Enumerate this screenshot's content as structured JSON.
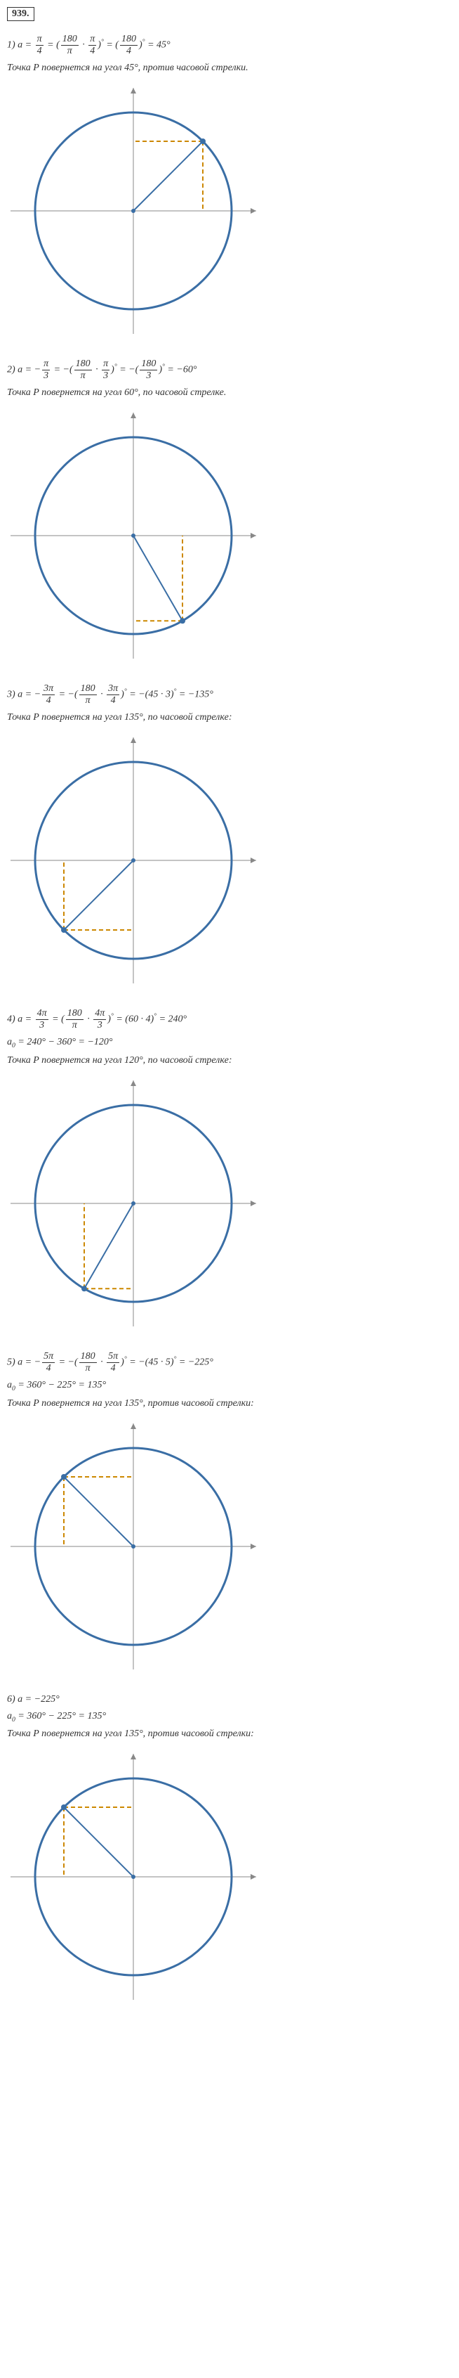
{
  "problem_number": "939.",
  "items": [
    {
      "label": "1)",
      "equation_html": "<i>a</i> = <span class='frac'><span class='num'>π</span><span class='den'>4</span></span> = (<span class='frac'><span class='num'>180</span><span class='den'>π</span></span> · <span class='frac'><span class='num'>π</span><span class='den'>4</span></span>)<span class='sup'>°</span> = (<span class='frac'><span class='num'>180</span><span class='den'>4</span></span>)<span class='sup'>°</span> = 45°",
      "description": "Точка P повернется на угол 45°, против часовой стрелки.",
      "angle": 45,
      "direction": "ccw"
    },
    {
      "label": "2)",
      "equation_html": "<i>a</i> = −<span class='frac'><span class='num'>π</span><span class='den'>3</span></span> = −(<span class='frac'><span class='num'>180</span><span class='den'>π</span></span> · <span class='frac'><span class='num'>π</span><span class='den'>3</span></span>)<span class='sup'>°</span> = −(<span class='frac'><span class='num'>180</span><span class='den'>3</span></span>)<span class='sup'>°</span> = −60°",
      "description": "Точка  P повернется на угол 60°, по часовой стрелке.",
      "angle": -60,
      "direction": "cw"
    },
    {
      "label": "3)",
      "equation_html": "<i>a</i> = −<span class='frac'><span class='num'>3π</span><span class='den'>4</span></span> = −(<span class='frac'><span class='num'>180</span><span class='den'>π</span></span> · <span class='frac'><span class='num'>3π</span><span class='den'>4</span></span>)<span class='sup'>°</span> = −(45 · 3)<span class='sup'>°</span> = −135°",
      "description": "Точка  P повернется на угол 135°, по часовой стрелке:",
      "angle": -135,
      "direction": "cw"
    },
    {
      "label": "4)",
      "equation_html": "<i>a</i> = <span class='frac'><span class='num'>4π</span><span class='den'>3</span></span> = (<span class='frac'><span class='num'>180</span><span class='den'>π</span></span> · <span class='frac'><span class='num'>4π</span><span class='den'>3</span></span>)<span class='sup'>°</span> = (60 · 4)<span class='sup'>°</span> = 240°",
      "sub_equation_html": "<i>a</i><span class='sub'>0</span> = 240° − 360° = −120°",
      "description": "Точка  P повернется на угол 120°, по часовой стрелке:",
      "angle": -120,
      "direction": "cw"
    },
    {
      "label": "5)",
      "equation_html": "<i>a</i> = −<span class='frac'><span class='num'>5π</span><span class='den'>4</span></span> = −(<span class='frac'><span class='num'>180</span><span class='den'>π</span></span> · <span class='frac'><span class='num'>5π</span><span class='den'>4</span></span>)<span class='sup'>°</span> = −(45 · 5)<span class='sup'>°</span> = −225°",
      "sub_equation_html": "<i>a</i><span class='sub'>0</span> = 360° − 225° = 135°",
      "description": "Точка  P повернется на угол 135°, против часовой стрелки:",
      "angle": 135,
      "direction": "ccw"
    },
    {
      "label": "6)",
      "equation_html": "<i>a</i> = −225°",
      "sub_equation_html": "<i>a</i><span class='sub'>0</span> = 360° − 225° = 135°",
      "description": "Точка  P повернется на угол 135°, против часовой стрелки:",
      "angle": 135,
      "direction": "ccw"
    }
  ],
  "diagram": {
    "circle_radius": 140,
    "circle_color": "#3a6ea5",
    "circle_width": 3,
    "axis_color": "#888888",
    "axis_width": 1,
    "radius_color": "#3a6ea5",
    "radius_width": 2,
    "dash_color": "#cc8800",
    "dash_width": 2,
    "point_color": "#3a6ea5",
    "canvas_size": 360,
    "axis_extent": 175
  }
}
